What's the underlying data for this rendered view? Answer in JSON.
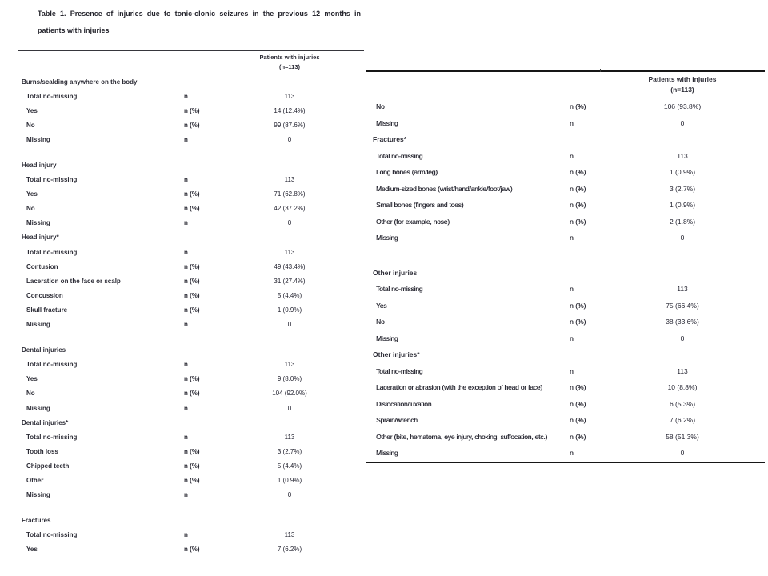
{
  "title": {
    "line1": "Table 1. Presence of injuries due to tonic-clonic seizures in the previous 12 months in",
    "line2": "patients with injuries"
  },
  "tables": {
    "left": {
      "header": {
        "line1": "Patients with injuries",
        "line2": "(n=113)"
      },
      "blocks": [
        {
          "section": "Burns/scalding anywhere on the body",
          "gap_after": true,
          "rows": [
            {
              "label": "Total no-missing",
              "stat": "n",
              "value": "113"
            },
            {
              "label": "Yes",
              "stat": "n (%)",
              "value": "14 (12.4%)"
            },
            {
              "label": "No",
              "stat": "n (%)",
              "value": "99 (87.6%)"
            },
            {
              "label": "Missing",
              "stat": "n",
              "value": "0"
            }
          ]
        },
        {
          "section": "Head injury",
          "gap_after": false,
          "rows": [
            {
              "label": "Total no-missing",
              "stat": "n",
              "value": "113"
            },
            {
              "label": "Yes",
              "stat": "n (%)",
              "value": "71 (62.8%)"
            },
            {
              "label": "No",
              "stat": "n (%)",
              "value": "42 (37.2%)"
            },
            {
              "label": "Missing",
              "stat": "n",
              "value": "0"
            }
          ]
        },
        {
          "section": "Head injury*",
          "gap_after": true,
          "rows": [
            {
              "label": "Total no-missing",
              "stat": "n",
              "value": "113"
            },
            {
              "label": "Contusion",
              "stat": "n (%)",
              "value": "49 (43.4%)"
            },
            {
              "label": "Laceration on the face or scalp",
              "stat": "n (%)",
              "value": "31 (27.4%)"
            },
            {
              "label": "Concussion",
              "stat": "n (%)",
              "value": "5 (4.4%)"
            },
            {
              "label": "Skull fracture",
              "stat": "n (%)",
              "value": "1 (0.9%)"
            },
            {
              "label": "Missing",
              "stat": "n",
              "value": "0"
            }
          ]
        },
        {
          "section": "Dental injuries",
          "gap_after": false,
          "rows": [
            {
              "label": "Total no-missing",
              "stat": "n",
              "value": "113"
            },
            {
              "label": "Yes",
              "stat": "n (%)",
              "value": "9 (8.0%)"
            },
            {
              "label": "No",
              "stat": "n (%)",
              "value": "104 (92.0%)"
            },
            {
              "label": "Missing",
              "stat": "n",
              "value": "0"
            }
          ]
        },
        {
          "section": "Dental injuries*",
          "gap_after": true,
          "rows": [
            {
              "label": "Total no-missing",
              "stat": "n",
              "value": "113"
            },
            {
              "label": "Tooth loss",
              "stat": "n (%)",
              "value": "3 (2.7%)"
            },
            {
              "label": "Chipped teeth",
              "stat": "n (%)",
              "value": "5 (4.4%)"
            },
            {
              "label": "Other",
              "stat": "n (%)",
              "value": "1 (0.9%)"
            },
            {
              "label": "Missing",
              "stat": "n",
              "value": "0"
            }
          ]
        },
        {
          "section": "Fractures",
          "gap_after": false,
          "rows": [
            {
              "label": "Total no-missing",
              "stat": "n",
              "value": "113"
            },
            {
              "label": "Yes",
              "stat": "n (%)",
              "value": "7 (6.2%)"
            }
          ]
        }
      ]
    },
    "right": {
      "header": {
        "line1": "Patients with injuries",
        "line2": "(n=113)"
      },
      "blocks": [
        {
          "section": null,
          "gap_after": false,
          "rows": [
            {
              "label": "No",
              "stat": "n (%)",
              "value": "106 (93.8%)"
            },
            {
              "label": "Missing",
              "stat": "n",
              "value": "0"
            }
          ]
        },
        {
          "section": "Fractures*",
          "gap_after": true,
          "rows": [
            {
              "label": "Total no-missing",
              "stat": "n",
              "value": "113"
            },
            {
              "label": "Long bones (arm/leg)",
              "stat": "n (%)",
              "value": "1 (0.9%)"
            },
            {
              "label": "Medium-sized bones (wrist/hand/ankle/foot/jaw)",
              "stat": "n (%)",
              "value": "3 (2.7%)"
            },
            {
              "label": "Small bones (fingers and toes)",
              "stat": "n (%)",
              "value": "1 (0.9%)"
            },
            {
              "label": "Other (for example, nose)",
              "stat": "n (%)",
              "value": "2 (1.8%)"
            },
            {
              "label": "Missing",
              "stat": "n",
              "value": "0"
            }
          ]
        },
        {
          "section": "Other injuries",
          "gap_after": false,
          "rows": [
            {
              "label": "Total no-missing",
              "stat": "n",
              "value": "113"
            },
            {
              "label": "Yes",
              "stat": "n (%)",
              "value": "75 (66.4%)"
            },
            {
              "label": "No",
              "stat": "n (%)",
              "value": "38 (33.6%)"
            },
            {
              "label": "Missing",
              "stat": "n",
              "value": "0"
            }
          ]
        },
        {
          "section": "Other injuries*",
          "gap_after": false,
          "rows": [
            {
              "label": "Total no-missing",
              "stat": "n",
              "value": "113"
            },
            {
              "label": "Laceration or abrasion (with the exception of head or face)",
              "stat": "n (%)",
              "value": "10 (8.8%)"
            },
            {
              "label": "Dislocation/luxation",
              "stat": "n (%)",
              "value": "6 (5.3%)"
            },
            {
              "label": "Sprain/wrench",
              "stat": "n (%)",
              "value": "7 (6.2%)"
            },
            {
              "label": "Other (bite, hematoma, eye injury, choking, suffocation, etc.)",
              "stat": "n (%)",
              "value": "58 (51.3%)"
            },
            {
              "label": "Missing",
              "stat": "n",
              "value": "0"
            }
          ]
        }
      ]
    }
  }
}
